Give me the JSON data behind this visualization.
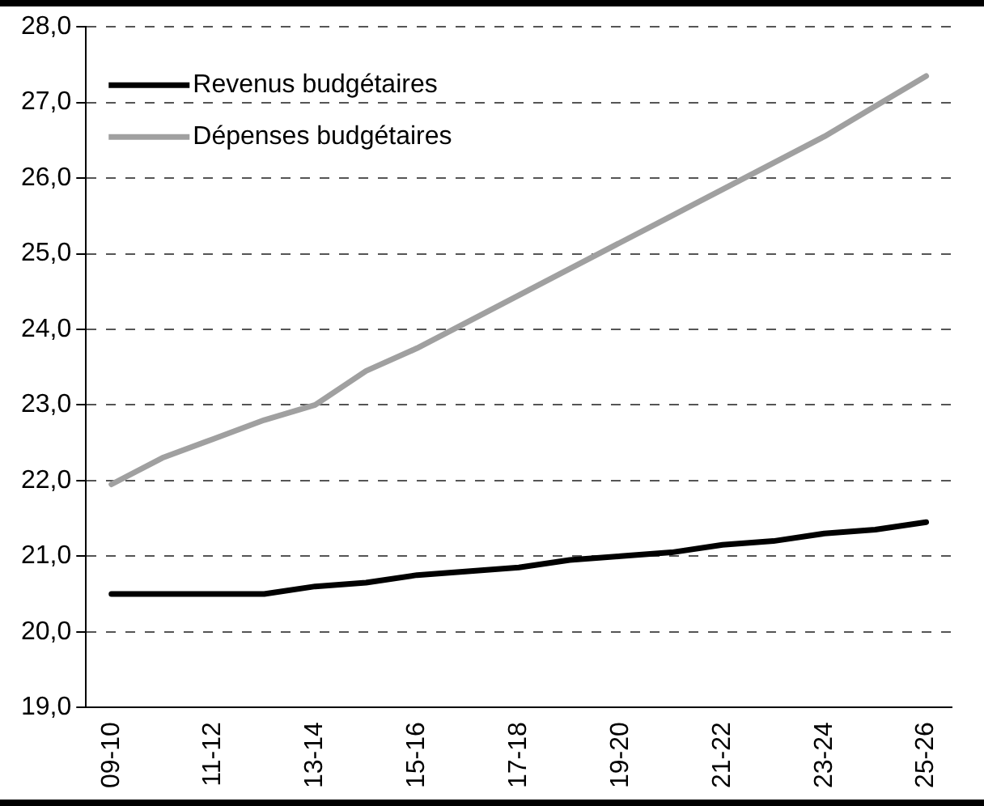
{
  "chart_data": {
    "type": "line",
    "categories": [
      "09-10",
      null,
      "11-12",
      null,
      "13-14",
      null,
      "15-16",
      null,
      "17-18",
      null,
      "19-20",
      null,
      "21-22",
      null,
      "23-24",
      null,
      "25-26"
    ],
    "series": [
      {
        "name": "Revenus budgétaires",
        "color": "#000000",
        "values": [
          20.5,
          20.5,
          20.5,
          20.5,
          20.6,
          20.65,
          20.75,
          20.8,
          20.85,
          20.95,
          21.0,
          21.05,
          21.15,
          21.2,
          21.3,
          21.35,
          21.45
        ]
      },
      {
        "name": "Dépenses budgétaires",
        "color": "#a0a0a0",
        "values": [
          21.95,
          22.3,
          22.55,
          22.8,
          23.0,
          23.45,
          23.75,
          24.1,
          24.45,
          24.8,
          25.15,
          25.5,
          25.85,
          26.2,
          26.55,
          26.95,
          27.35
        ]
      }
    ],
    "ylim": [
      19,
      28
    ],
    "yticks": [
      {
        "value": 19,
        "label": "19,0"
      },
      {
        "value": 20,
        "label": "20,0"
      },
      {
        "value": 21,
        "label": "21,0"
      },
      {
        "value": 22,
        "label": "22,0"
      },
      {
        "value": 23,
        "label": "23,0"
      },
      {
        "value": 24,
        "label": "24,0"
      },
      {
        "value": 25,
        "label": "25,0"
      },
      {
        "value": 26,
        "label": "26,0"
      },
      {
        "value": 27,
        "label": "27,0"
      },
      {
        "value": 28,
        "label": "28,0"
      }
    ],
    "grid": "y",
    "legend": "top left",
    "marker": "none",
    "line_style": "solid"
  }
}
